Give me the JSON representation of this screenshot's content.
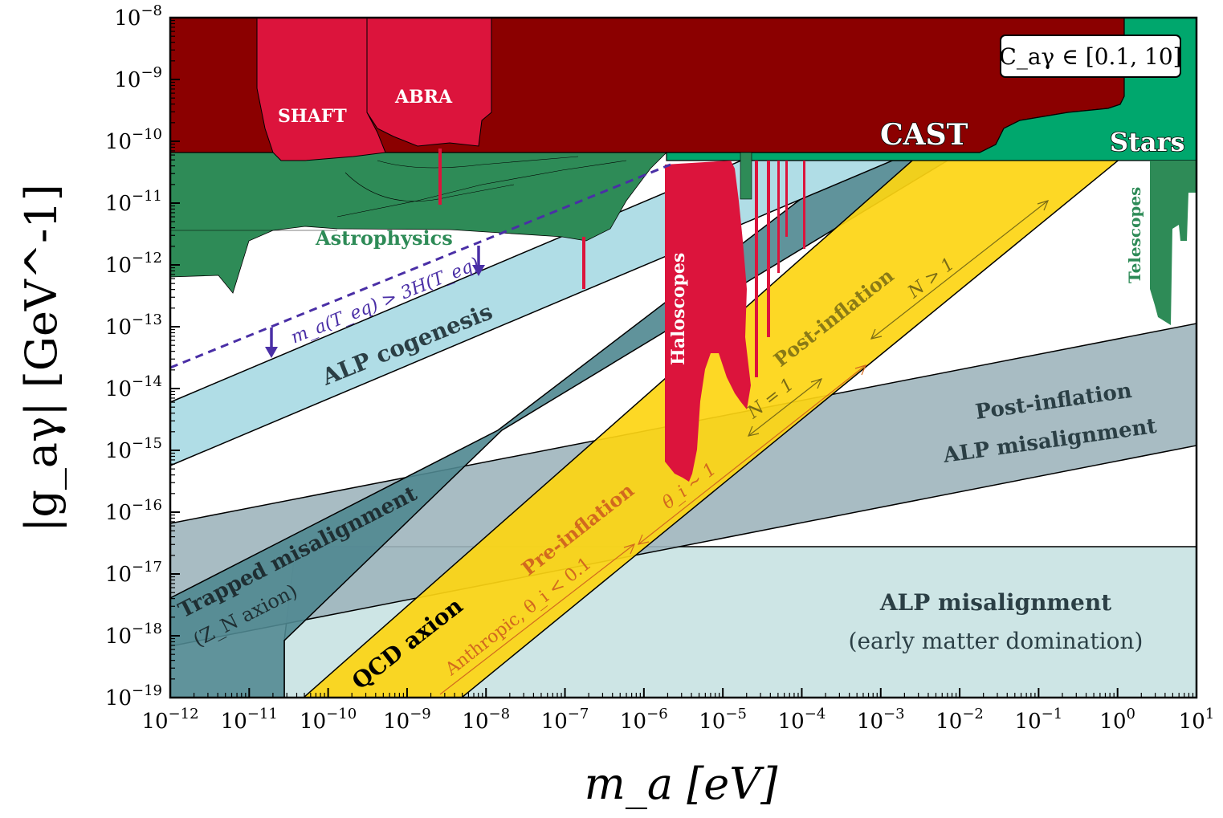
{
  "chart_data": {
    "type": "area",
    "title": "",
    "xlabel": "m_a [eV]",
    "ylabel": "|g_aγ| [GeV^-1]",
    "x_scale": "log",
    "y_scale": "log",
    "xlim_log10": [
      -12,
      1
    ],
    "ylim_log10": [
      -19,
      -8
    ],
    "x_ticks_log10": [
      -12,
      -11,
      -10,
      -9,
      -8,
      -7,
      -6,
      -5,
      -4,
      -3,
      -2,
      -1,
      0,
      1
    ],
    "y_ticks_log10": [
      -19,
      -18,
      -17,
      -16,
      -15,
      -14,
      -13,
      -12,
      -11,
      -10,
      -9,
      -8
    ],
    "x_tick_base": "10",
    "y_tick_base": "10",
    "legend_box": "C_aγ ∈ [0.1, 10]",
    "colors": {
      "cast": "#8b0000",
      "stars": "#00a76d",
      "astrophysics": "#2e8b57",
      "haloscopes": "#dc143c",
      "telescopes": "#2e8b57",
      "qcd_axion": "#fdd512",
      "alp_cogenesis": "#b0dde6",
      "trapped_misalignment": "#5b8f98",
      "post_inflation_alp": "#a7bac2",
      "alp_misalignment_emd": "#cde5e5",
      "teq_line": "#4a2fa6",
      "pre_inflation_text": "#d2691e",
      "post_inflation_text": "#8a7a16"
    },
    "regions": [
      {
        "name": "CAST",
        "log10_x": [
          -12,
          0.1
        ],
        "log10_y_lower": -9.83,
        "log10_y_upper": -8
      },
      {
        "name": "Stars",
        "log10_x": [
          -12,
          1
        ],
        "log10_y_lower": -10.33,
        "log10_y_upper": -9.83
      },
      {
        "name": "Astrophysics",
        "log10_x": [
          -12,
          -5.2
        ],
        "log10_y_lower_min": -12.5,
        "log10_y_upper": -10.3
      },
      {
        "name": "ALP cogenesis",
        "log10_x": [
          -12,
          1
        ],
        "lower_at_x_min": -15.2,
        "upper_at_x_min": -14.2
      },
      {
        "name": "QCD axion",
        "log10_x": [
          -10,
          1
        ],
        "band_slope": 1
      },
      {
        "name": "Trapped misalignment",
        "log10_x": [
          -12,
          1
        ]
      },
      {
        "name": "Post-inflation ALP misalignment",
        "log10_x": [
          -12,
          1
        ],
        "lower_at_x_min": -18.2,
        "upper_at_x_min": -16.2,
        "lower_at_x_max": -14.9,
        "upper_at_x_max": -12.9
      },
      {
        "name": "ALP misalignment (early matter domination)",
        "log10_x": [
          -10.5,
          1
        ],
        "log10_y_upper": -16.6
      },
      {
        "name": "Haloscopes",
        "log10_x": [
          -6.0,
          -3.0
        ]
      },
      {
        "name": "Telescopes",
        "log10_x": [
          0.4,
          1
        ]
      }
    ],
    "teq_line": {
      "label": "m_a(T_eq) > 3H(T_eq)",
      "log10_x": [
        -12,
        -5.0
      ],
      "log10_y": [
        -13.65,
        -10.4
      ]
    },
    "annotations": {
      "shaft": "SHAFT",
      "abra": "ABRA",
      "cast": "CAST",
      "stars": "Stars",
      "astrophysics": "Astrophysics",
      "haloscopes": "Haloscopes",
      "telescopes": "Telescopes",
      "teq": "m_a(T_eq) > 3H(T_eq)",
      "cogenesis": "ALP cogenesis",
      "post_inflation": "Post-inflation",
      "n_gt_1": "N > 1",
      "n_eq_1": "N = 1",
      "theta_1": "θ_i ∼ 1",
      "pre_inflation": "Pre-inflation",
      "anthropic": "Anthropic, θ_i < 0.1",
      "qcd_axion": "QCD axion",
      "trapped": "Trapped misalignment",
      "zn_axion": "(Z_N axion)",
      "post_inflation_alp_1": "Post-inflation",
      "post_inflation_alp_2": "ALP misalignment",
      "alp_misalignment": "ALP misalignment",
      "emd": "(early matter domination)"
    }
  }
}
